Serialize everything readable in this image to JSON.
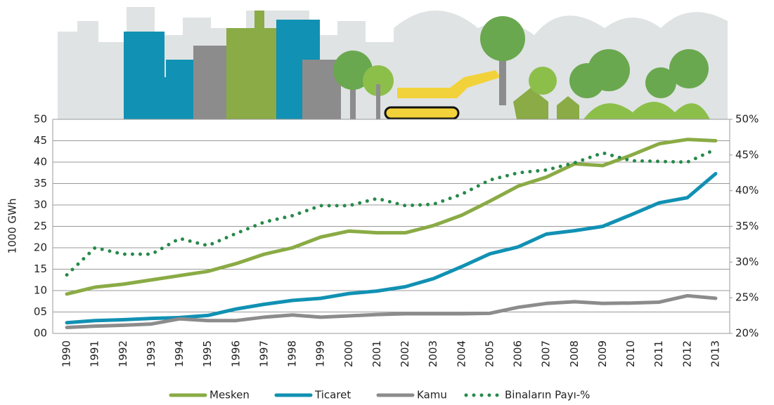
{
  "chart_data": {
    "type": "line",
    "y_label": "1000 GWh",
    "categories": [
      "1990",
      "1991",
      "1992",
      "1993",
      "1994",
      "1995",
      "1996",
      "1997",
      "1998",
      "1999",
      "2000",
      "2001",
      "2002",
      "2003",
      "2004",
      "2005",
      "2006",
      "2007",
      "2008",
      "2009",
      "2010",
      "2011",
      "2012",
      "2013"
    ],
    "series": [
      {
        "name": "Mesken",
        "color": "#8aab45",
        "values": [
          9.2,
          10.8,
          11.5,
          12.5,
          13.5,
          14.5,
          16.3,
          18.5,
          20,
          22.5,
          23.9,
          23.5,
          23.5,
          25.2,
          27.6,
          30.9,
          34.4,
          36.5,
          39.6,
          39.2,
          41.6,
          44.3,
          45.3,
          45.0
        ]
      },
      {
        "name": "Ticaret",
        "color": "#1191b3",
        "values": [
          2.5,
          3.0,
          3.2,
          3.5,
          3.7,
          4.2,
          5.7,
          6.8,
          7.7,
          8.2,
          9.3,
          9.9,
          10.9,
          12.8,
          15.6,
          18.6,
          20.2,
          23.2,
          24.0,
          25.0,
          27.7,
          30.5,
          31.7,
          37.3
        ]
      },
      {
        "name": "Kamu",
        "color": "#8c8c8c",
        "values": [
          1.4,
          1.7,
          1.9,
          2.2,
          3.4,
          3.0,
          3.0,
          3.8,
          4.3,
          3.8,
          4.1,
          4.4,
          4.6,
          4.6,
          4.6,
          4.7,
          6.1,
          7.0,
          7.4,
          7.0,
          7.1,
          7.3,
          8.8,
          8.2
        ]
      },
      {
        "name": "Binaların Payı-%",
        "color": "#27894a",
        "axis": "y2",
        "line_style": "dotted",
        "values": [
          28.2,
          32.0,
          31.1,
          31.1,
          33.3,
          32.3,
          34.0,
          35.6,
          36.5,
          37.9,
          37.9,
          38.9,
          37.9,
          38.1,
          39.5,
          41.5,
          42.5,
          42.9,
          43.9,
          45.3,
          44.2,
          44.1,
          44.0,
          45.8
        ]
      }
    ],
    "ylim": [
      0,
      50
    ],
    "yticks": [
      {
        "value": 0,
        "label": "00"
      },
      {
        "value": 5,
        "label": "05"
      },
      10,
      15,
      20,
      25,
      30,
      35,
      40,
      45,
      50
    ],
    "y2lim": [
      20,
      50
    ],
    "y2ticks": [
      {
        "value": 20,
        "label": "20%"
      },
      {
        "value": 25,
        "label": "25%"
      },
      {
        "value": 30,
        "label": "30%"
      },
      {
        "value": 35,
        "label": "35%"
      },
      {
        "value": 40,
        "label": "40%"
      },
      {
        "value": 45,
        "label": "45%"
      },
      {
        "value": 50,
        "label": "50%"
      }
    ],
    "grid": true
  }
}
